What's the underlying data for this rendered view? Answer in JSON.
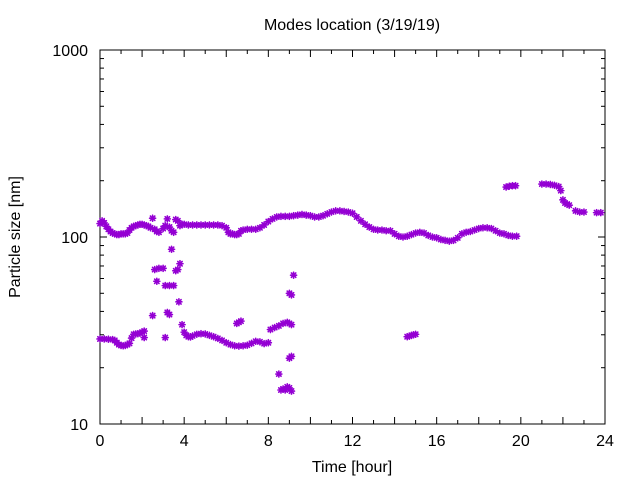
{
  "chart_data": {
    "type": "scatter",
    "title": "Modes location (3/19/19)",
    "xlabel": "Time [hour]",
    "ylabel": "Particle size [nm]",
    "xlim": [
      0,
      24
    ],
    "ylim": [
      10,
      1000
    ],
    "yscale": "log",
    "xticks": [
      "0",
      "4",
      "8",
      "12",
      "16",
      "20",
      "24"
    ],
    "yticks": [
      "10",
      "100",
      "1000"
    ],
    "grid": false,
    "marker_color": "#9400d3",
    "series": [
      {
        "points": [
          [
            0.0,
            118
          ],
          [
            0.1,
            122
          ],
          [
            0.2,
            119
          ],
          [
            0.3,
            114
          ],
          [
            0.4,
            110
          ],
          [
            0.5,
            107
          ],
          [
            0.6,
            105
          ],
          [
            0.7,
            104
          ],
          [
            0.8,
            103
          ],
          [
            0.9,
            103
          ],
          [
            1.0,
            104
          ],
          [
            1.1,
            104
          ],
          [
            1.2,
            104
          ],
          [
            1.3,
            105
          ],
          [
            1.4,
            109
          ],
          [
            1.5,
            112
          ],
          [
            1.6,
            114
          ],
          [
            1.7,
            115
          ],
          [
            1.8,
            116
          ],
          [
            1.9,
            117
          ],
          [
            2.0,
            117
          ],
          [
            2.1,
            116
          ],
          [
            2.2,
            115
          ],
          [
            2.3,
            114
          ],
          [
            2.4,
            112
          ],
          [
            2.5,
            126
          ],
          [
            2.6,
            110
          ],
          [
            2.7,
            107
          ],
          [
            2.8,
            106
          ],
          [
            3.0,
            111
          ],
          [
            3.1,
            115
          ],
          [
            3.2,
            125
          ],
          [
            3.3,
            113
          ],
          [
            3.4,
            108
          ],
          [
            3.5,
            106
          ],
          [
            3.6,
            124
          ],
          [
            3.7,
            122
          ],
          [
            3.8,
            115
          ],
          [
            3.9,
            117
          ],
          [
            4.0,
            117
          ],
          [
            4.2,
            116
          ],
          [
            4.4,
            116
          ],
          [
            4.6,
            116
          ],
          [
            4.8,
            116
          ],
          [
            5.0,
            116
          ],
          [
            5.2,
            116
          ],
          [
            5.4,
            116
          ],
          [
            5.6,
            116
          ],
          [
            5.8,
            115
          ],
          [
            6.0,
            112
          ],
          [
            6.1,
            106
          ],
          [
            6.2,
            104
          ],
          [
            6.3,
            104
          ],
          [
            6.4,
            103
          ],
          [
            6.5,
            103
          ],
          [
            6.6,
            104
          ],
          [
            6.7,
            108
          ],
          [
            6.8,
            109
          ],
          [
            7.0,
            110
          ],
          [
            7.2,
            110
          ],
          [
            7.4,
            110
          ],
          [
            7.6,
            112
          ],
          [
            7.8,
            116
          ],
          [
            8.0,
            121
          ],
          [
            8.2,
            125
          ],
          [
            8.4,
            128
          ],
          [
            8.6,
            129
          ],
          [
            8.8,
            129
          ],
          [
            9.0,
            129
          ],
          [
            9.2,
            130
          ],
          [
            9.4,
            131
          ],
          [
            9.6,
            132
          ],
          [
            9.8,
            131
          ],
          [
            10.0,
            130
          ],
          [
            10.2,
            128
          ],
          [
            10.4,
            128
          ],
          [
            10.6,
            130
          ],
          [
            10.8,
            133
          ],
          [
            11.0,
            136
          ],
          [
            11.2,
            138
          ],
          [
            11.4,
            138
          ],
          [
            11.6,
            137
          ],
          [
            11.8,
            136
          ],
          [
            12.0,
            134
          ],
          [
            12.2,
            128
          ],
          [
            12.4,
            122
          ],
          [
            12.6,
            117
          ],
          [
            12.8,
            113
          ],
          [
            13.0,
            110
          ],
          [
            13.2,
            109
          ],
          [
            13.4,
            109
          ],
          [
            13.6,
            108
          ],
          [
            13.8,
            108
          ],
          [
            14.0,
            104
          ],
          [
            14.2,
            101
          ],
          [
            14.4,
            100
          ],
          [
            14.6,
            101
          ],
          [
            14.8,
            103
          ],
          [
            15.0,
            105
          ],
          [
            15.2,
            106
          ],
          [
            15.4,
            105
          ],
          [
            15.6,
            102
          ],
          [
            15.8,
            100
          ],
          [
            16.0,
            99
          ],
          [
            16.2,
            97
          ],
          [
            16.4,
            96
          ],
          [
            16.6,
            95
          ],
          [
            16.8,
            96
          ],
          [
            17.0,
            99
          ],
          [
            17.2,
            104
          ],
          [
            17.4,
            106
          ],
          [
            17.6,
            107
          ],
          [
            17.8,
            109
          ],
          [
            18.0,
            111
          ],
          [
            18.2,
            112
          ],
          [
            18.4,
            112
          ],
          [
            18.6,
            111
          ],
          [
            18.8,
            108
          ],
          [
            19.0,
            105
          ],
          [
            19.2,
            104
          ],
          [
            19.4,
            102
          ],
          [
            19.6,
            101
          ],
          [
            19.8,
            101
          ],
          [
            19.3,
            185
          ],
          [
            19.45,
            187
          ],
          [
            19.6,
            188
          ],
          [
            19.75,
            188
          ],
          [
            21.0,
            192
          ],
          [
            21.2,
            192
          ],
          [
            21.4,
            191
          ],
          [
            21.6,
            189
          ],
          [
            21.8,
            186
          ],
          [
            21.9,
            177
          ],
          [
            22.0,
            158
          ],
          [
            22.1,
            152
          ],
          [
            22.2,
            150
          ],
          [
            22.3,
            148
          ],
          [
            22.6,
            138
          ],
          [
            22.8,
            136
          ],
          [
            23.0,
            136
          ],
          [
            23.6,
            135
          ],
          [
            23.8,
            135
          ]
        ]
      },
      {
        "points": [
          [
            0.0,
            28.5
          ],
          [
            0.2,
            28.5
          ],
          [
            0.4,
            28.4
          ],
          [
            0.6,
            28.3
          ],
          [
            0.7,
            28.0
          ],
          [
            0.8,
            27.2
          ],
          [
            0.9,
            26.6
          ],
          [
            1.0,
            26.3
          ],
          [
            1.1,
            26.2
          ],
          [
            1.2,
            26.3
          ],
          [
            1.3,
            26.6
          ],
          [
            1.4,
            27.0
          ],
          [
            1.5,
            28.8
          ],
          [
            1.6,
            30.2
          ],
          [
            1.7,
            30.3
          ],
          [
            1.8,
            30.4
          ],
          [
            1.9,
            30.6
          ],
          [
            2.0,
            31.0
          ],
          [
            2.1,
            31.4
          ],
          [
            2.5,
            38.0
          ],
          [
            2.6,
            67.0
          ],
          [
            2.7,
            58.0
          ],
          [
            2.8,
            68.0
          ],
          [
            3.0,
            68.0
          ],
          [
            3.1,
            55.0
          ],
          [
            3.2,
            39.5
          ],
          [
            3.3,
            38.5
          ],
          [
            3.3,
            55.0
          ],
          [
            3.4,
            86.0
          ],
          [
            3.5,
            55.0
          ],
          [
            3.6,
            66.0
          ],
          [
            3.7,
            67.0
          ],
          [
            3.8,
            72.0
          ],
          [
            3.75,
            45.0
          ],
          [
            3.9,
            34.0
          ],
          [
            4.0,
            31.0
          ],
          [
            4.1,
            29.8
          ],
          [
            4.2,
            29.3
          ],
          [
            4.3,
            29.2
          ],
          [
            4.4,
            29.6
          ],
          [
            4.6,
            30.2
          ],
          [
            4.8,
            30.4
          ],
          [
            5.0,
            30.3
          ],
          [
            5.2,
            29.8
          ],
          [
            5.4,
            29.3
          ],
          [
            5.6,
            28.7
          ],
          [
            5.8,
            28.0
          ],
          [
            6.0,
            27.2
          ],
          [
            6.2,
            26.6
          ],
          [
            6.4,
            26.2
          ],
          [
            6.6,
            26.1
          ],
          [
            6.8,
            26.2
          ],
          [
            7.0,
            26.4
          ],
          [
            7.2,
            27.0
          ],
          [
            7.4,
            27.7
          ],
          [
            7.6,
            27.5
          ],
          [
            7.8,
            26.9
          ],
          [
            8.0,
            27.2
          ],
          [
            6.5,
            34.5
          ],
          [
            6.6,
            35.0
          ],
          [
            6.7,
            35.5
          ],
          [
            8.1,
            32.0
          ],
          [
            8.3,
            32.8
          ],
          [
            8.5,
            33.5
          ],
          [
            8.7,
            34.5
          ],
          [
            8.9,
            35.0
          ],
          [
            9.0,
            34.5
          ],
          [
            9.1,
            34.0
          ],
          [
            8.5,
            18.5
          ],
          [
            8.6,
            15.2
          ],
          [
            8.7,
            15.4
          ],
          [
            8.8,
            15.2
          ],
          [
            8.9,
            15.8
          ],
          [
            9.0,
            15.6
          ],
          [
            9.1,
            15.0
          ],
          [
            9.0,
            22.5
          ],
          [
            9.1,
            23.0
          ],
          [
            9.0,
            50.0
          ],
          [
            9.1,
            49.0
          ],
          [
            9.2,
            62.5
          ],
          [
            2.1,
            29.0
          ],
          [
            3.1,
            29.0
          ],
          [
            14.6,
            29.3
          ],
          [
            14.7,
            29.5
          ],
          [
            14.8,
            29.8
          ],
          [
            14.9,
            30.0
          ],
          [
            15.0,
            30.2
          ]
        ]
      }
    ]
  }
}
